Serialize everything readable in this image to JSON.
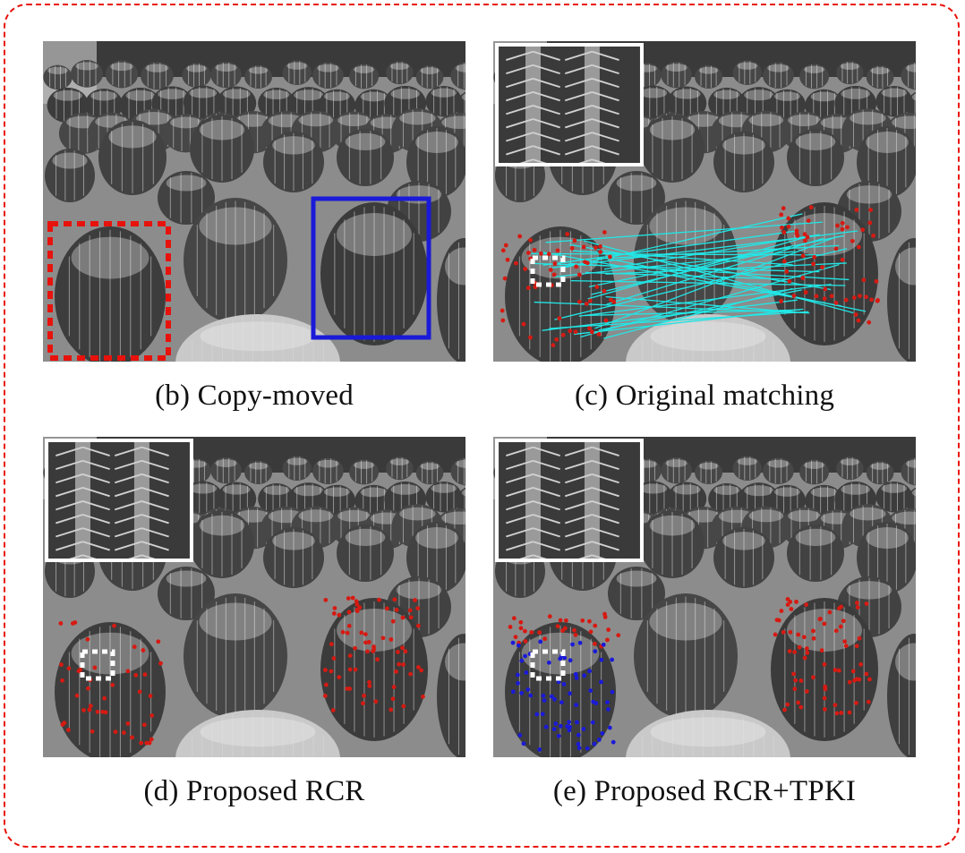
{
  "figure": {
    "panels": [
      {
        "id": "b",
        "caption": "(b)  Copy-moved"
      },
      {
        "id": "c",
        "caption": "(c)  Original matching"
      },
      {
        "id": "d",
        "caption": "(d)  Proposed RCR"
      },
      {
        "id": "e",
        "caption": "(e)  Proposed RCR+TPKI"
      }
    ],
    "colors": {
      "frame": "#e8120c",
      "source_box": "#e8120c",
      "target_box": "#1a1ad8",
      "keypoint_red": "#d61a12",
      "keypoint_blue": "#1a1ad8",
      "match_line": "#22e6e6",
      "zoom_marker": "#ffffff"
    }
  }
}
